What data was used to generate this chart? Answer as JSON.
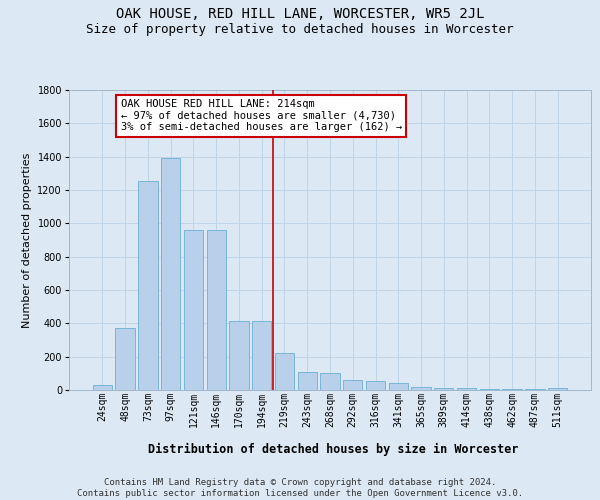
{
  "title": "OAK HOUSE, RED HILL LANE, WORCESTER, WR5 2JL",
  "subtitle": "Size of property relative to detached houses in Worcester",
  "xlabel": "Distribution of detached houses by size in Worcester",
  "ylabel": "Number of detached properties",
  "categories": [
    "24sqm",
    "48sqm",
    "73sqm",
    "97sqm",
    "121sqm",
    "146sqm",
    "170sqm",
    "194sqm",
    "219sqm",
    "243sqm",
    "268sqm",
    "292sqm",
    "316sqm",
    "341sqm",
    "365sqm",
    "389sqm",
    "414sqm",
    "438sqm",
    "462sqm",
    "487sqm",
    "511sqm"
  ],
  "values": [
    30,
    375,
    1255,
    1390,
    960,
    960,
    415,
    415,
    225,
    110,
    100,
    60,
    55,
    40,
    20,
    15,
    10,
    5,
    5,
    5,
    10
  ],
  "bar_color": "#b8d0ea",
  "bar_edge_color": "#6baed6",
  "grid_color": "#c0d4e8",
  "background_color": "#dce9f5",
  "vline_x_index": 8,
  "vline_color": "#cc0000",
  "annotation_line1": "OAK HOUSE RED HILL LANE: 214sqm",
  "annotation_line2": "← 97% of detached houses are smaller (4,730)",
  "annotation_line3": "3% of semi-detached houses are larger (162) →",
  "annotation_box_edgecolor": "#cc0000",
  "ylim": [
    0,
    1800
  ],
  "yticks": [
    0,
    200,
    400,
    600,
    800,
    1000,
    1200,
    1400,
    1600,
    1800
  ],
  "footer_line1": "Contains HM Land Registry data © Crown copyright and database right 2024.",
  "footer_line2": "Contains public sector information licensed under the Open Government Licence v3.0.",
  "title_fontsize": 10,
  "subtitle_fontsize": 9,
  "xlabel_fontsize": 8.5,
  "ylabel_fontsize": 8,
  "tick_fontsize": 7,
  "annotation_fontsize": 7.5,
  "footer_fontsize": 6.5
}
